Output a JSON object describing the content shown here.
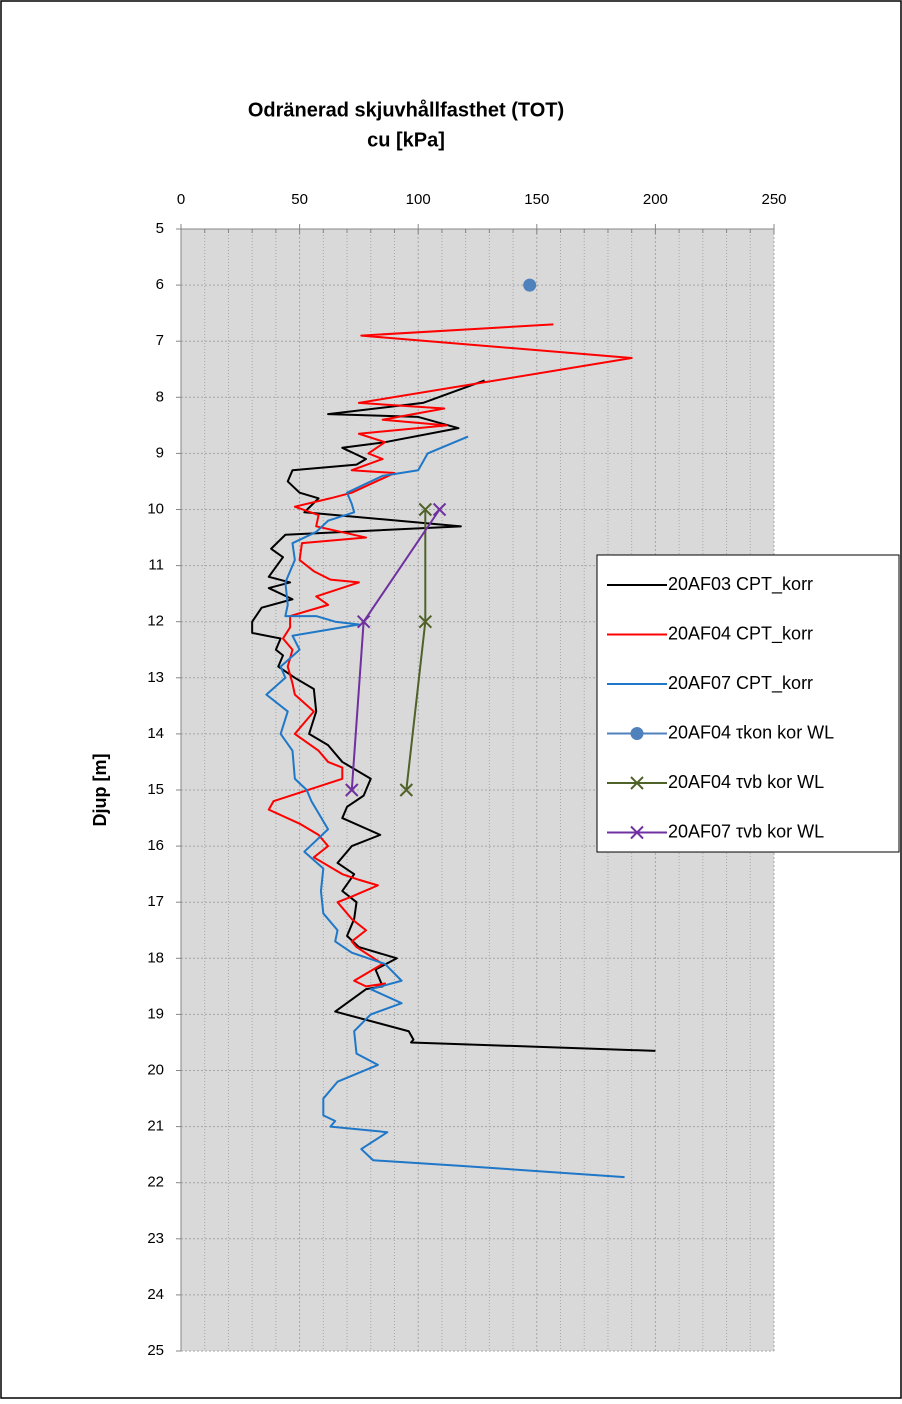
{
  "chart_data": {
    "type": "line",
    "title": "Odränerad skjuvhållfasthet (TOT)",
    "subtitle": "cu [kPa]",
    "y_label": "Djup [m]",
    "xlim": [
      0,
      250
    ],
    "xticks": [
      0,
      50,
      100,
      150,
      200,
      250
    ],
    "ylim": [
      5,
      25
    ],
    "yticks": [
      5,
      6,
      7,
      8,
      9,
      10,
      11,
      12,
      13,
      14,
      15,
      16,
      17,
      18,
      19,
      20,
      21,
      22,
      23,
      24,
      25
    ],
    "y_reversed": true,
    "x_axis_position": "top",
    "grid": true,
    "legend_position": "right",
    "series": [
      {
        "name": "20AF03 CPT_korr",
        "color": "#000000",
        "marker": "none",
        "x": [
          128,
          102,
          62,
          100,
          117,
          86,
          68,
          78,
          74,
          47,
          45,
          50,
          58,
          52,
          118,
          44,
          38,
          43,
          37,
          46,
          37,
          47,
          34,
          30,
          30,
          42,
          40,
          43,
          41,
          48,
          56,
          57,
          54,
          62,
          68,
          80,
          77,
          70,
          68,
          84,
          72,
          66,
          73,
          68,
          74,
          73,
          70,
          75,
          91,
          82,
          85,
          78,
          65,
          96,
          98,
          97,
          200
        ],
        "y": [
          7.7,
          8.1,
          8.3,
          8.35,
          8.55,
          8.8,
          8.9,
          9.1,
          9.2,
          9.3,
          9.5,
          9.7,
          9.8,
          10.05,
          10.3,
          10.45,
          10.7,
          10.85,
          11.2,
          11.3,
          11.4,
          11.6,
          11.75,
          12.0,
          12.2,
          12.3,
          12.5,
          12.6,
          12.8,
          13.0,
          13.2,
          13.6,
          14.0,
          14.2,
          14.5,
          14.8,
          15.1,
          15.3,
          15.5,
          15.8,
          16.0,
          16.3,
          16.5,
          16.8,
          17.0,
          17.3,
          17.6,
          17.8,
          18.0,
          18.2,
          18.5,
          18.55,
          18.95,
          19.3,
          19.45,
          19.5,
          19.65
        ]
      },
      {
        "name": "20AF04 CPT_korr",
        "color": "#ff0000",
        "marker": "none",
        "x": [
          157,
          76,
          190,
          75,
          111,
          85,
          112,
          75,
          86,
          79,
          85,
          72,
          90,
          72,
          63,
          48,
          58,
          57,
          78,
          51,
          50,
          56,
          63,
          75,
          57,
          62,
          46,
          46,
          43,
          47,
          45,
          47,
          48,
          56,
          48,
          58,
          62,
          68,
          68,
          39,
          37,
          50,
          58,
          62,
          56,
          68,
          75,
          83,
          72,
          66,
          72,
          78,
          72,
          74,
          85,
          73,
          78,
          86,
          82
        ],
        "y": [
          6.7,
          6.9,
          7.3,
          8.1,
          8.2,
          8.4,
          8.5,
          8.65,
          8.8,
          9.0,
          9.1,
          9.3,
          9.35,
          9.7,
          9.8,
          9.95,
          10.1,
          10.3,
          10.5,
          10.6,
          10.9,
          11.1,
          11.25,
          11.3,
          11.55,
          11.7,
          11.9,
          12.1,
          12.3,
          12.5,
          12.8,
          13.1,
          13.3,
          13.6,
          14.0,
          14.3,
          14.5,
          14.6,
          14.8,
          15.2,
          15.35,
          15.6,
          15.8,
          16.0,
          16.2,
          16.5,
          16.6,
          16.7,
          16.9,
          17.0,
          17.3,
          17.5,
          17.7,
          17.8,
          18.1,
          18.4,
          18.5,
          18.45,
          18.5
        ]
      },
      {
        "name": "20AF07 CPT_korr",
        "color": "#1f77c8",
        "marker": "none",
        "x": [
          121,
          104,
          100,
          85,
          70,
          72,
          73,
          62,
          57,
          47,
          48,
          44,
          45,
          44,
          57,
          65,
          75,
          47,
          50,
          42,
          44,
          36,
          45,
          42,
          47,
          48,
          53,
          55,
          62,
          52,
          60,
          59,
          60,
          66,
          65,
          72,
          86,
          93,
          80,
          93,
          80,
          73,
          74,
          83,
          66,
          60,
          60,
          65,
          63,
          87,
          76,
          81,
          118,
          187
        ],
        "y": [
          8.7,
          9.0,
          9.3,
          9.4,
          9.7,
          9.9,
          10.05,
          10.2,
          10.4,
          10.6,
          10.9,
          11.3,
          11.7,
          11.9,
          11.9,
          12.0,
          12.05,
          12.25,
          12.5,
          12.8,
          13.0,
          13.3,
          13.6,
          14.0,
          14.3,
          14.8,
          15.0,
          15.2,
          15.7,
          16.1,
          16.4,
          16.8,
          17.2,
          17.5,
          17.7,
          17.9,
          18.1,
          18.4,
          18.55,
          18.8,
          19.0,
          19.3,
          19.7,
          19.9,
          20.2,
          20.5,
          20.8,
          20.9,
          21.0,
          21.1,
          21.4,
          21.6,
          21.7,
          21.9
        ]
      },
      {
        "name": "20AF04 τkon kor WL",
        "color": "#4f81bd",
        "marker": "circle",
        "x": [
          147
        ],
        "y": [
          6.0
        ]
      },
      {
        "name": "20AF04 τvb kor WL",
        "color": "#4f6228",
        "marker": "x",
        "x": [
          103,
          103,
          95
        ],
        "y": [
          10,
          12,
          15
        ]
      },
      {
        "name": "20AF07 τvb kor WL",
        "color": "#7030a0",
        "marker": "x",
        "x": [
          109,
          77,
          72
        ],
        "y": [
          10,
          12,
          15
        ]
      }
    ]
  }
}
